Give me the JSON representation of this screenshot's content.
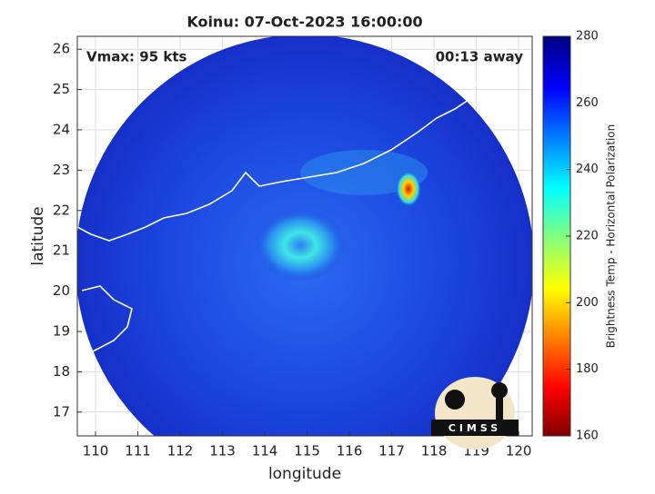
{
  "map": {
    "title": "Koinu: 07-Oct-2023 16:00:00",
    "xlabel": "longitude",
    "ylabel": "latitude",
    "annotations": {
      "left": "Vmax: 95 kts",
      "right": "00:13 away"
    },
    "xlim": [
      109.57,
      120.32
    ],
    "ylim": [
      16.41,
      26.32
    ],
    "xticks": [
      110,
      111,
      112,
      113,
      114,
      115,
      116,
      117,
      118,
      119,
      120
    ],
    "yticks": [
      17,
      18,
      19,
      20,
      21,
      22,
      23,
      24,
      25,
      26
    ],
    "grid": true,
    "colorbar": {
      "label": "Brightness Temp - Horizontal Polarization",
      "lim": [
        160,
        280
      ],
      "ticks": [
        160,
        180,
        200,
        220,
        240,
        260,
        280
      ]
    },
    "logo": "CIMSS"
  }
}
